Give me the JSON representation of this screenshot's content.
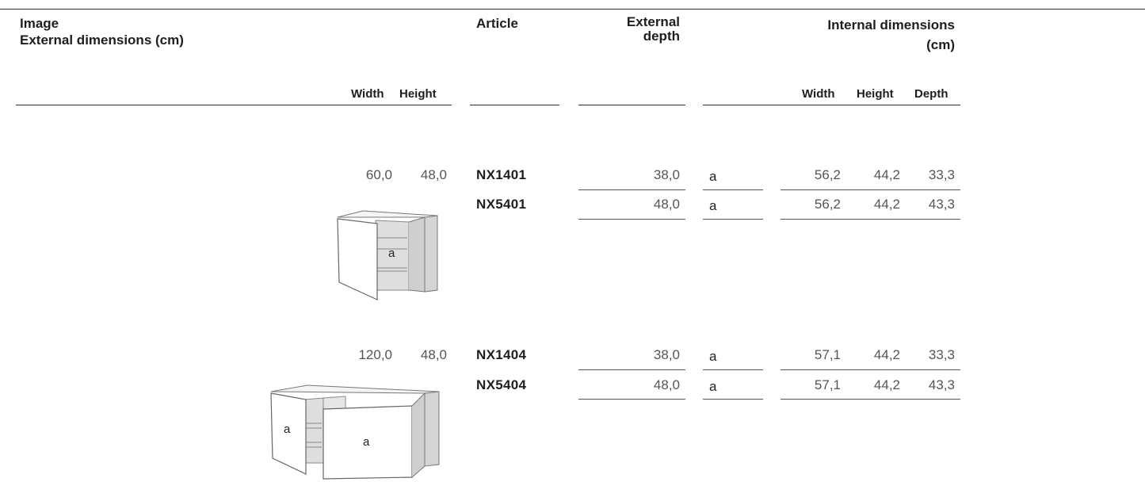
{
  "header": {
    "image_line1": "Image",
    "image_line2": "External dimensions (cm)",
    "article": "Article",
    "ext_depth_line1": "External",
    "ext_depth_line2": "depth",
    "internal_line1": "Internal dimensions",
    "internal_line2": "(cm)",
    "ext_width": "Width",
    "ext_height": "Height",
    "int_width": "Width",
    "int_height": "Height",
    "int_depth": "Depth"
  },
  "groups": [
    {
      "ext_width": "60,0",
      "ext_height": "48,0",
      "image_label_a": "a",
      "rows": [
        {
          "article": "NX1401",
          "depth": "38,0",
          "code": "a",
          "int_width": "56,2",
          "int_height": "44,2",
          "int_depth": "33,3"
        },
        {
          "article": "NX5401",
          "depth": "48,0",
          "code": "a",
          "int_width": "56,2",
          "int_height": "44,2",
          "int_depth": "43,3"
        }
      ]
    },
    {
      "ext_width": "120,0",
      "ext_height": "48,0",
      "image_label_a": "a",
      "image_label_b": "a",
      "rows": [
        {
          "article": "NX1404",
          "depth": "38,0",
          "code": "a",
          "int_width": "57,1",
          "int_height": "44,2",
          "int_depth": "33,3"
        },
        {
          "article": "NX5404",
          "depth": "48,0",
          "code": "a",
          "int_width": "57,1",
          "int_height": "44,2",
          "int_depth": "43,3"
        }
      ]
    }
  ]
}
